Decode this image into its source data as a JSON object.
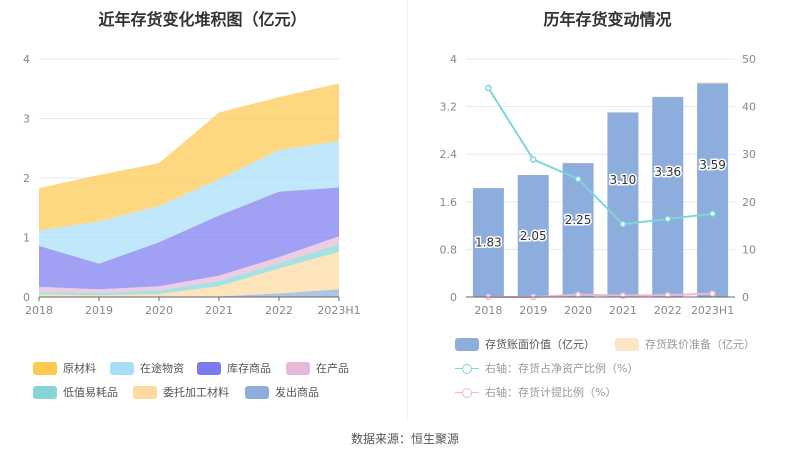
{
  "left": {
    "title": "近年存货变化堆积图（亿元）",
    "legend": [
      {
        "label": "原材料",
        "color": "#fdc94f"
      },
      {
        "label": "在途物资",
        "color": "#a8def8"
      },
      {
        "label": "库存商品",
        "color": "#7b7bf0"
      },
      {
        "label": "在产品",
        "color": "#e8b8d8"
      },
      {
        "label": "低值易耗品",
        "color": "#87d6d6"
      },
      {
        "label": "委托加工材料",
        "color": "#fed9a0"
      },
      {
        "label": "发出商品",
        "color": "#8daedc"
      }
    ]
  },
  "right": {
    "title": "历年存货变动情况",
    "legend": [
      {
        "label": "存货账面价值（亿元）",
        "color": "#8daedc",
        "kind": "bar"
      },
      {
        "label": "存货跌价准备（亿元）",
        "color": "#fde6c4",
        "kind": "bar"
      },
      {
        "label": "右轴：存货占净资产比例（%）",
        "color": "#7dd6d8",
        "kind": "line"
      },
      {
        "label": "右轴：存货计提比例（%）",
        "color": "#eeb6d8",
        "kind": "line"
      }
    ]
  },
  "source": "数据来源：恒生聚源",
  "chart_data": [
    {
      "type": "area",
      "stacked": true,
      "title": "近年存货变化堆积图（亿元）",
      "xlabel": "",
      "ylabel": "",
      "categories": [
        "2018",
        "2019",
        "2020",
        "2021",
        "2022",
        "2023H1"
      ],
      "ylim": [
        0,
        4
      ],
      "yticks": [
        "0",
        "1",
        "2",
        "3",
        "4"
      ],
      "grid": true,
      "legend_position": "bottom",
      "series": [
        {
          "name": "发出商品",
          "color": "#8daedc",
          "values": [
            0.0,
            0.0,
            0.01,
            0.01,
            0.06,
            0.13
          ]
        },
        {
          "name": "委托加工材料",
          "color": "#fed9a0",
          "values": [
            0.04,
            0.03,
            0.04,
            0.17,
            0.42,
            0.63
          ]
        },
        {
          "name": "低值易耗品",
          "color": "#87d6d6",
          "values": [
            0.04,
            0.04,
            0.06,
            0.09,
            0.09,
            0.13
          ]
        },
        {
          "name": "在产品",
          "color": "#e8b8d8",
          "values": [
            0.09,
            0.06,
            0.07,
            0.09,
            0.1,
            0.13
          ]
        },
        {
          "name": "库存商品",
          "color": "#7b7bf0",
          "values": [
            0.69,
            0.43,
            0.74,
            1.01,
            1.1,
            0.82
          ]
        },
        {
          "name": "在途物资",
          "color": "#a8def8",
          "values": [
            0.26,
            0.71,
            0.61,
            0.61,
            0.7,
            0.78
          ]
        },
        {
          "name": "原材料",
          "color": "#fdc94f",
          "values": [
            0.71,
            0.78,
            0.72,
            1.12,
            0.89,
            0.97
          ]
        }
      ]
    },
    {
      "type": "bar",
      "title": "历年存货变动情况",
      "categories": [
        "2018",
        "2019",
        "2020",
        "2021",
        "2022",
        "2023H1"
      ],
      "ylim": [
        0,
        4
      ],
      "yticks": [
        "0",
        "0.8",
        "1.6",
        "2.4",
        "3.2",
        "4"
      ],
      "y2lim": [
        0,
        50
      ],
      "y2ticks": [
        "0",
        "10",
        "20",
        "30",
        "40",
        "50"
      ],
      "grid": true,
      "legend_position": "bottom",
      "series": [
        {
          "name": "存货账面价值（亿元）",
          "axis": "left",
          "type": "bar",
          "color": "#8daedc",
          "values": [
            1.83,
            2.05,
            2.25,
            3.1,
            3.36,
            3.59
          ],
          "labels": [
            "1.83",
            "2.05",
            "2.25",
            "3.10",
            "3.36",
            "3.59"
          ]
        },
        {
          "name": "存货跌价准备（亿元）",
          "axis": "left",
          "type": "bar",
          "color": "#fde6c4",
          "values": [
            0.0,
            0.0,
            0.01,
            0.01,
            0.01,
            0.02
          ]
        },
        {
          "name": "右轴：存货占净资产比例（%）",
          "axis": "right",
          "type": "line",
          "color": "#7dd6d8",
          "values": [
            43.9,
            28.9,
            24.8,
            15.3,
            16.4,
            17.5
          ]
        },
        {
          "name": "右轴：存货计提比例（%）",
          "axis": "right",
          "type": "line",
          "color": "#eeb6d8",
          "values": [
            0.0,
            0.0,
            0.5,
            0.3,
            0.4,
            0.7
          ]
        }
      ]
    }
  ]
}
